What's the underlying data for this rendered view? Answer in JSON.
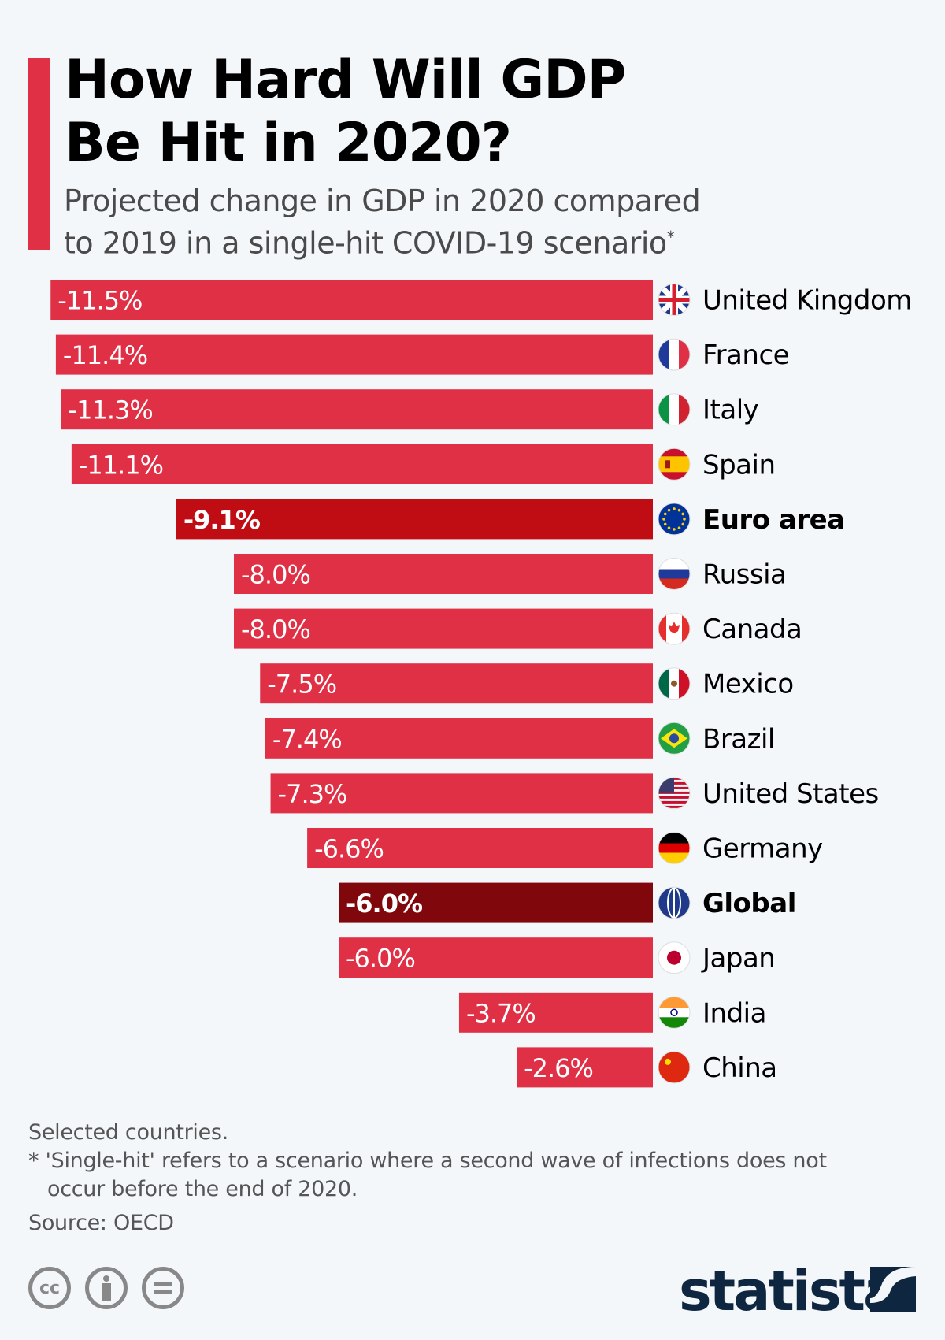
{
  "header": {
    "title_line1": "How Hard Will GDP",
    "title_line2": "Be Hit in 2020?",
    "subtitle_line1": "Projected change in GDP in 2020 compared",
    "subtitle_line2": "to 2019 in a single-hit COVID-19 scenario",
    "subtitle_mark": "*"
  },
  "chart_data": {
    "type": "bar",
    "orientation": "horizontal",
    "categories": [
      "United Kingdom",
      "France",
      "Italy",
      "Spain",
      "Euro area",
      "Russia",
      "Canada",
      "Mexico",
      "Brazil",
      "United States",
      "Germany",
      "Global",
      "Japan",
      "India",
      "China"
    ],
    "values": [
      -11.5,
      -11.4,
      -11.3,
      -11.1,
      -9.1,
      -8.0,
      -8.0,
      -7.5,
      -7.4,
      -7.3,
      -6.6,
      -6.0,
      -6.0,
      -3.7,
      -2.6
    ],
    "labels": [
      "-11.5%",
      "-11.4%",
      "-11.3%",
      "-11.1%",
      "-9.1%",
      "-8.0%",
      "-8.0%",
      "-7.5%",
      "-7.4%",
      "-7.3%",
      "-6.6%",
      "-6.0%",
      "-6.0%",
      "-3.7%",
      "-2.6%"
    ],
    "highlighted": [
      "Euro area",
      "Global"
    ],
    "icons": [
      "flag-uk",
      "flag-france",
      "flag-italy",
      "flag-spain",
      "flag-eu",
      "flag-russia",
      "flag-canada",
      "flag-mexico",
      "flag-brazil",
      "flag-usa",
      "flag-germany",
      "globe",
      "flag-japan",
      "flag-india",
      "flag-china"
    ],
    "colors": {
      "default": "#e03046",
      "euro_area": "#c00d14",
      "global": "#80070c"
    },
    "grid": false
  },
  "footer": {
    "note1": "Selected countries.",
    "note2_line1": "* 'Single-hit' refers to a scenario where a second wave of infections does not",
    "note2_line2": "occur before the end of 2020.",
    "source": "Source: OECD",
    "license_icons": [
      "cc-icon",
      "attribution-icon",
      "no-derivatives-icon"
    ],
    "cc_text": "cc",
    "brand": "statista"
  }
}
